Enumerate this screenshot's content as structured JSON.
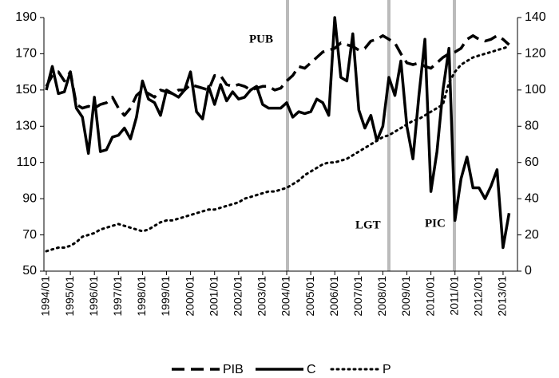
{
  "chart_data": {
    "type": "line",
    "categories": [
      "1994/01",
      null,
      null,
      null,
      "1995/01",
      null,
      null,
      null,
      "1996/01",
      null,
      null,
      null,
      "1997/01",
      null,
      null,
      null,
      "1998/01",
      null,
      null,
      null,
      "1999/01",
      null,
      null,
      null,
      "2000/01",
      null,
      null,
      null,
      "2001/01",
      null,
      null,
      null,
      "2002/01",
      null,
      null,
      null,
      "2003/01",
      null,
      null,
      null,
      "2004/01",
      null,
      null,
      null,
      "2005/01",
      null,
      null,
      null,
      "2006/01",
      null,
      null,
      null,
      "2007/01",
      null,
      null,
      null,
      "2008/01",
      null,
      null,
      null,
      "2009/01",
      null,
      null,
      null,
      "2010/01",
      null,
      null,
      null,
      "2011/01",
      null,
      null,
      null,
      "2012/01",
      null,
      null,
      null,
      "2013/01",
      null
    ],
    "series": [
      {
        "name": "PIB",
        "color": "#000000",
        "style": "dashed",
        "values": [
          152,
          158,
          160,
          155,
          160,
          142,
          140,
          141,
          140,
          142,
          143,
          146,
          140,
          136,
          140,
          147,
          150,
          148,
          146,
          150,
          149,
          148,
          150,
          150,
          153,
          152,
          151,
          150,
          158,
          158,
          153,
          152,
          153,
          152,
          150,
          151,
          152,
          152,
          150,
          151,
          155,
          158,
          163,
          162,
          165,
          168,
          171,
          172,
          173,
          176,
          175,
          174,
          172,
          173,
          177,
          178,
          180,
          178,
          176,
          170,
          165,
          164,
          165,
          163,
          162,
          165,
          168,
          170,
          171,
          173,
          178,
          180,
          178,
          177,
          178,
          180,
          178,
          175
        ]
      },
      {
        "name": "C",
        "color": "#000000",
        "style": "solid",
        "values": [
          150,
          163,
          148,
          149,
          160,
          140,
          135,
          115,
          146,
          116,
          117,
          124,
          125,
          129,
          123,
          135,
          155,
          145,
          143,
          136,
          150,
          148,
          146,
          150,
          160,
          138,
          134,
          152,
          142,
          153,
          144,
          149,
          145,
          146,
          150,
          152,
          142,
          140,
          140,
          140,
          143,
          135,
          138,
          137,
          138,
          145,
          143,
          136,
          190,
          157,
          155,
          181,
          139,
          129,
          136,
          122,
          130,
          157,
          147,
          166,
          130,
          112,
          147,
          178,
          94,
          116,
          150,
          173,
          78,
          101,
          113,
          96,
          96,
          90,
          97,
          106,
          63,
          82
        ]
      },
      {
        "name": "P",
        "color": "#000000",
        "style": "dotted",
        "axis": "y2",
        "values": [
          11,
          12,
          13,
          13,
          14,
          16,
          19,
          20,
          21,
          23,
          24,
          25,
          26,
          25,
          24,
          23,
          22,
          23,
          25,
          27,
          28,
          28,
          29,
          30,
          31,
          32,
          33,
          34,
          34,
          35,
          36,
          37,
          38,
          40,
          41,
          42,
          43,
          44,
          44,
          45,
          46,
          48,
          50,
          53,
          55,
          57,
          59,
          60,
          60,
          61,
          62,
          64,
          66,
          68,
          70,
          72,
          74,
          75,
          77,
          79,
          81,
          83,
          84,
          86,
          88,
          90,
          92,
          104,
          110,
          114,
          116,
          118,
          119,
          120,
          121,
          122,
          123,
          124
        ]
      }
    ],
    "annotations": [
      "PUB",
      "LGT",
      "PIC"
    ],
    "ylim": [
      50,
      190
    ],
    "yticks": [
      50,
      70,
      90,
      110,
      130,
      150,
      170,
      190
    ],
    "y2lim": [
      0,
      140
    ],
    "y2ticks": [
      0,
      20,
      40,
      60,
      80,
      100,
      120,
      140
    ],
    "legend": "bottom"
  }
}
